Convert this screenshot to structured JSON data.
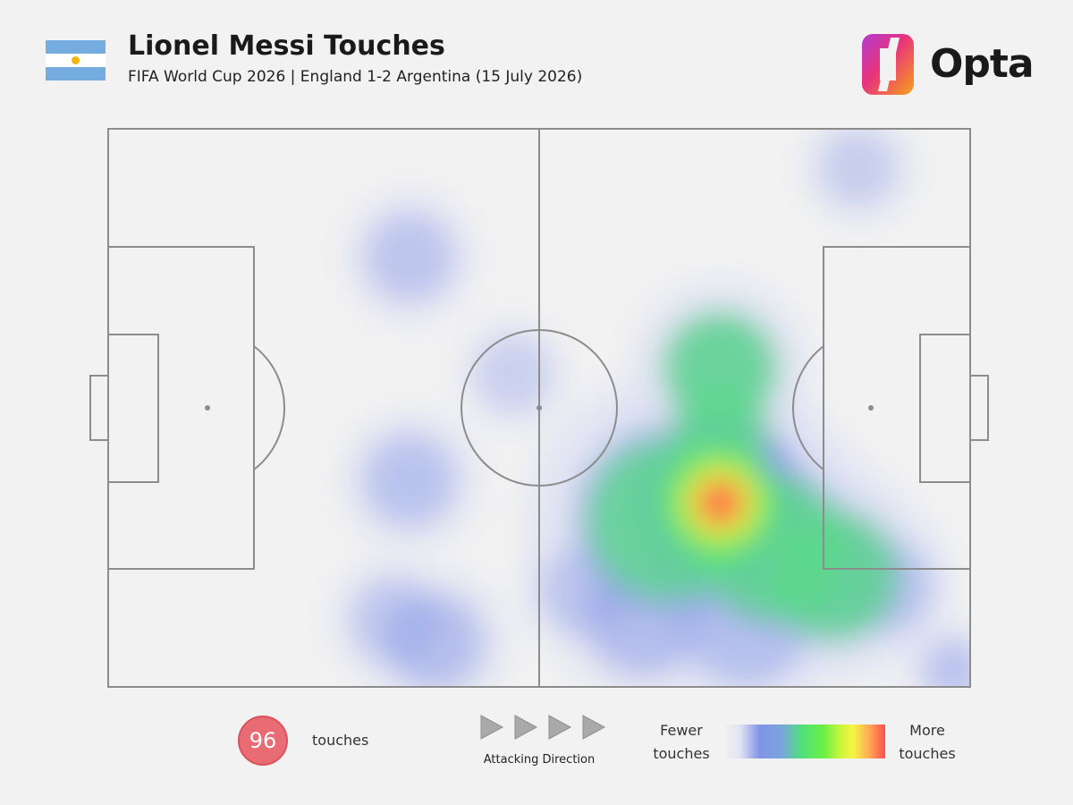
{
  "header": {
    "title": "Lionel Messi Touches",
    "subtitle": "FIFA World Cup 2026 | England 1-2 Argentina (15 July 2026)",
    "flag": "argentina-flag",
    "brand": "Opta"
  },
  "footer": {
    "touch_count": "96",
    "touch_label": "touches",
    "direction_label": "Attacking Direction",
    "legend_low": [
      "Fewer",
      "touches"
    ],
    "legend_high": [
      "More",
      "touches"
    ]
  },
  "colors": {
    "background": "#f2f2f2",
    "pitch_lines": "#888888",
    "badge": "#e96b73",
    "heat_scale": [
      "#eef0f8",
      "#7f90e6",
      "#48e07a",
      "#7cf53a",
      "#f3f542",
      "#ff5a4a"
    ]
  },
  "chart_data": {
    "type": "heatmap",
    "title": "Lionel Messi Touches",
    "subtitle": "FIFA World Cup 2026 | England 1-2 Argentina (15 July 2026)",
    "pitch": {
      "length": 100,
      "width": 100
    },
    "attacking_direction": "left-to-right",
    "total_touches": 96,
    "density_points": [
      {
        "x": 71,
        "y": 67,
        "intensity": 1.0,
        "spread": 7
      },
      {
        "x": 65,
        "y": 70,
        "intensity": 0.55,
        "spread": 10
      },
      {
        "x": 77,
        "y": 75,
        "intensity": 0.5,
        "spread": 9
      },
      {
        "x": 71,
        "y": 43,
        "intensity": 0.4,
        "spread": 7
      },
      {
        "x": 71,
        "y": 55,
        "intensity": 0.4,
        "spread": 6
      },
      {
        "x": 84,
        "y": 80,
        "intensity": 0.45,
        "spread": 8
      },
      {
        "x": 90,
        "y": 82,
        "intensity": 0.3,
        "spread": 6
      },
      {
        "x": 62,
        "y": 88,
        "intensity": 0.35,
        "spread": 7
      },
      {
        "x": 74,
        "y": 89,
        "intensity": 0.3,
        "spread": 8
      },
      {
        "x": 55,
        "y": 83,
        "intensity": 0.2,
        "spread": 6
      },
      {
        "x": 38,
        "y": 92,
        "intensity": 0.35,
        "spread": 6
      },
      {
        "x": 33,
        "y": 88,
        "intensity": 0.2,
        "spread": 6
      },
      {
        "x": 35,
        "y": 63,
        "intensity": 0.3,
        "spread": 6
      },
      {
        "x": 35,
        "y": 23,
        "intensity": 0.25,
        "spread": 6
      },
      {
        "x": 47,
        "y": 44,
        "intensity": 0.1,
        "spread": 6
      },
      {
        "x": 98,
        "y": 97,
        "intensity": 0.3,
        "spread": 4
      },
      {
        "x": 87,
        "y": 7,
        "intensity": 0.12,
        "spread": 6
      }
    ],
    "legend": {
      "low": "Fewer touches",
      "high": "More touches",
      "placement": "bottom-right"
    }
  }
}
